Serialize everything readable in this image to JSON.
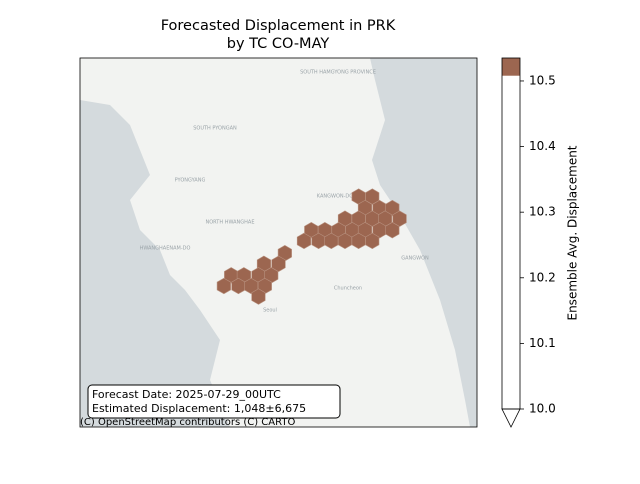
{
  "chart_data": {
    "type": "hexmap",
    "title": "Forecasted Displacement in PRK",
    "subtitle": "by TC CO-MAY",
    "xlim": [
      124.97,
      129.33
    ],
    "ylim": [
      36.02,
      40.52
    ],
    "hexes": {
      "lon": [
        128.03,
        128.18,
        128.1,
        128.26,
        128.4,
        127.88,
        128.03,
        128.18,
        128.32,
        128.48,
        127.51,
        127.66,
        127.81,
        127.96,
        128.1,
        128.26,
        128.4,
        127.43,
        127.59,
        127.73,
        127.88,
        128.03,
        128.18,
        127.22,
        126.99,
        127.15,
        126.63,
        126.77,
        126.93,
        127.07,
        126.55,
        126.71,
        126.85,
        127.0,
        126.93
      ],
      "lat": [
        38.83,
        38.83,
        38.69,
        38.69,
        38.69,
        38.56,
        38.56,
        38.56,
        38.56,
        38.56,
        38.42,
        38.42,
        38.42,
        38.42,
        38.42,
        38.42,
        38.42,
        38.29,
        38.29,
        38.29,
        38.29,
        38.29,
        38.29,
        38.14,
        38.01,
        38.01,
        37.87,
        37.87,
        37.87,
        37.87,
        37.74,
        37.74,
        37.74,
        37.74,
        37.61
      ],
      "values": [
        10.52,
        10.52,
        10.52,
        10.52,
        10.52,
        10.52,
        10.52,
        10.52,
        10.52,
        10.52,
        10.52,
        10.52,
        10.52,
        10.52,
        10.52,
        10.52,
        10.52,
        10.52,
        10.52,
        10.52,
        10.52,
        10.52,
        10.52,
        10.52,
        10.52,
        10.52,
        10.52,
        10.52,
        10.52,
        10.52,
        10.52,
        10.52,
        10.52,
        10.52,
        10.52
      ],
      "color": "#9c6650"
    },
    "colorbar": {
      "label": "Ensemble Avg. Displacement",
      "lim": [
        10.0,
        10.535
      ],
      "ticks": [
        {
          "value": 10.0,
          "label": "10.0"
        },
        10.1,
        10.2,
        10.3,
        10.4,
        10.5
      ],
      "boundaries": [
        10.0,
        10.508,
        10.535
      ],
      "colors": [
        "#ffffff",
        "#9c6650"
      ],
      "extend": "min"
    },
    "annotation": [
      "Forecast Date: 2025-07-29_00UTC",
      "Estimated Displacement: 1,048±6,675"
    ],
    "attribution": "(C) OpenStreetMap contributors (C) CARTO",
    "map_labels": [
      "SOUTH HAMGYONG PROVINCE",
      "SOUTH PYONGAN",
      "PYONGYANG",
      "NORTH HWANGHAE",
      "HWANGHAENAM-DO",
      "KANGWON-DO",
      "Seoul",
      "Chuncheon",
      "GANGWON"
    ]
  }
}
